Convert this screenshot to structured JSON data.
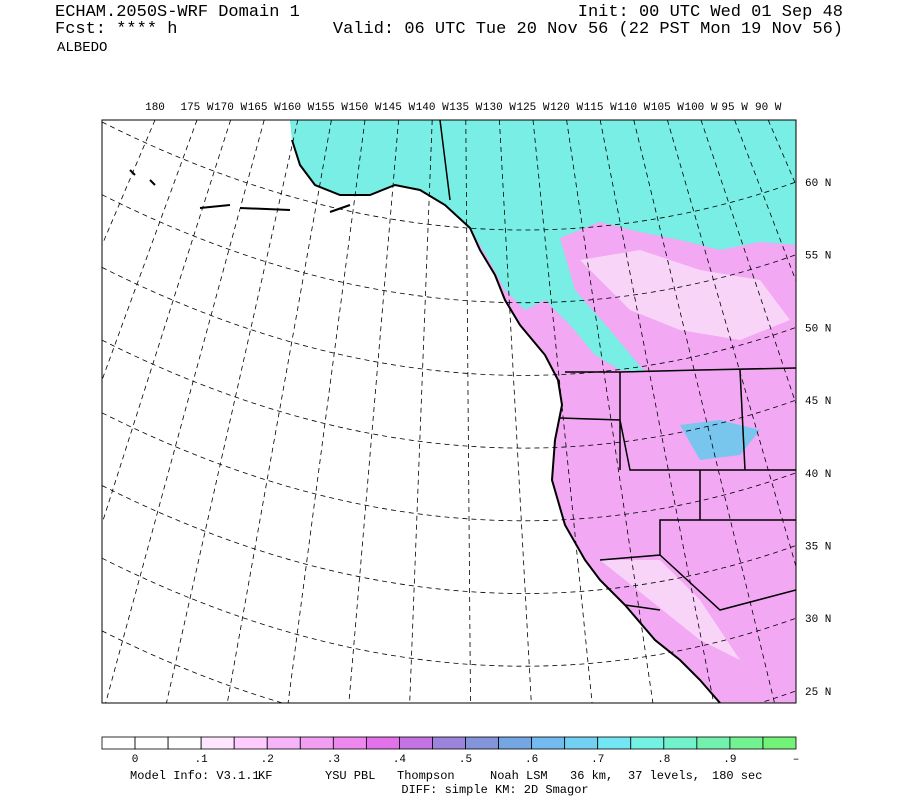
{
  "header": {
    "title": "ECHAM.2050S-WRF Domain 1",
    "forecast": "Fcst: **** h",
    "field": "ALBEDO",
    "init": "Init: 00 UTC Wed 01 Sep 48",
    "valid": "Valid: 06 UTC Tue 20 Nov 56 (22 PST Mon 19 Nov 56)"
  },
  "map": {
    "longitude_labels": [
      "180",
      "175 W",
      "170 W",
      "165 W",
      "160 W",
      "155 W",
      "150 W",
      "145 W",
      "140 W",
      "135 W",
      "130 W",
      "125 W",
      "120 W",
      "115 W",
      "110 W",
      "105 W",
      "100 W",
      "95 W",
      "90 W"
    ],
    "latitude_labels": [
      "60 N",
      "55 N",
      "50 N",
      "45 N",
      "40 N",
      "35 N",
      "30 N",
      "25 N"
    ]
  },
  "colorbar": {
    "colors": [
      "#ffffff",
      "#ffffff",
      "#ffffff",
      "#ffe6ff",
      "#ffccff",
      "#f7b4f7",
      "#f29ef2",
      "#ee88ee",
      "#e272ea",
      "#c474e2",
      "#9c84dc",
      "#8494da",
      "#74a6e4",
      "#72baf0",
      "#72d0f2",
      "#72e6f2",
      "#72f2e2",
      "#72f2ca",
      "#72f2ac",
      "#72f290",
      "#72f276"
    ],
    "labels": [
      "0",
      ".1",
      ".2",
      ".3",
      ".4",
      ".5",
      ".6",
      ".7",
      ".8",
      ".9",
      "–"
    ]
  },
  "footer": {
    "model_info": "Model Info: V3.1.1",
    "cumulus": "KF",
    "pbl": "YSU PBL",
    "microphysics": "Thompson",
    "land_surface": "Noah LSM",
    "resolution": "36 km,",
    "levels": "37 levels,",
    "timestep": "180 sec",
    "diffusion": "DIFF: simple KM: 2D Smagor"
  }
}
